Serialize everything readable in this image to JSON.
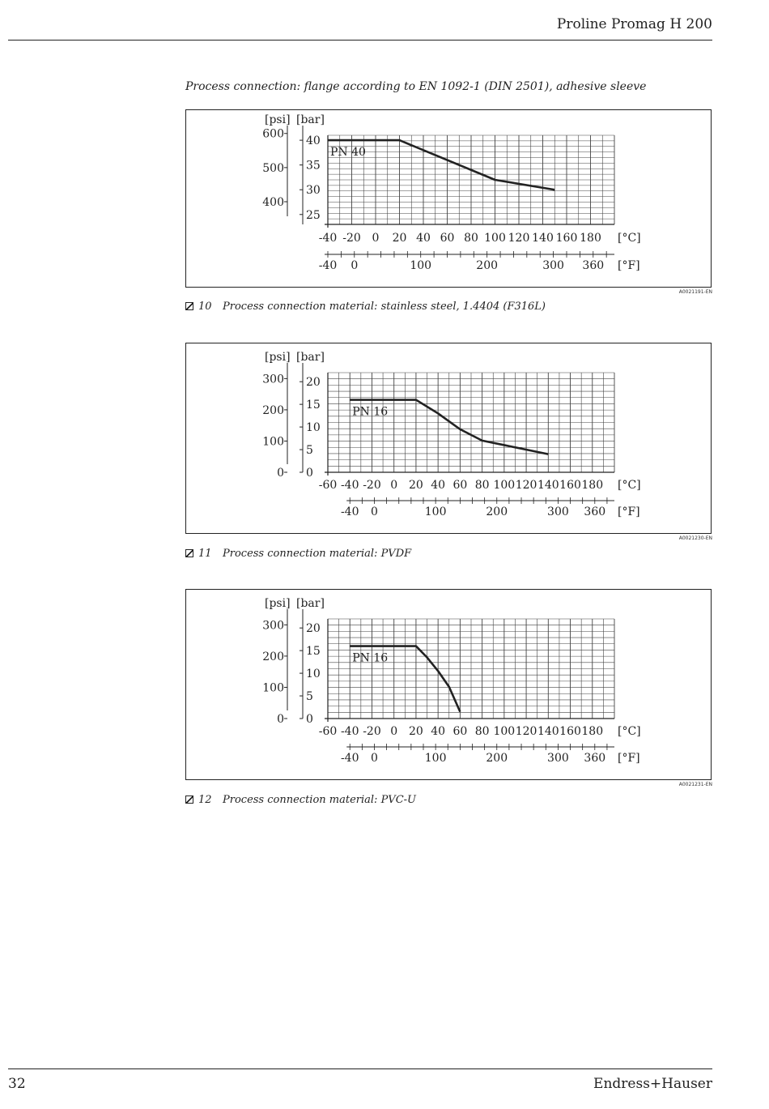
{
  "header": {
    "title": "Proline Promag H 200"
  },
  "section_title": "Process connection: flange according to EN 1092-1 (DIN 2501), adhesive sleeve",
  "figures": [
    {
      "number": "10",
      "caption": "Process connection material: stainless steel, 1.4404 (F316L)",
      "code": "A0021191-EN"
    },
    {
      "number": "11",
      "caption": "Process connection material: PVDF",
      "code": "A0021230-EN"
    },
    {
      "number": "12",
      "caption": "Process connection material: PVC-U",
      "code": "A0021231-EN"
    }
  ],
  "footer": {
    "page_number": "32",
    "brand": "Endress+Hauser"
  },
  "chart_data": [
    {
      "type": "line",
      "xlabel": "[°C]",
      "x2label": "[°F]",
      "ylabel": "[bar]",
      "y2label": "[psi]",
      "xlim": [
        -40,
        200
      ],
      "ylim": [
        23,
        41
      ],
      "grid": true,
      "x_ticks": [
        "-40",
        "-20",
        "0",
        "20",
        "40",
        "60",
        "80",
        "100",
        "120",
        "140",
        "160",
        "180"
      ],
      "x2_ticks": [
        "-40",
        "0",
        "100",
        "200",
        "300",
        "360"
      ],
      "y_ticks": [
        "40",
        "35",
        "30",
        "25"
      ],
      "y2_ticks": [
        "600",
        "500",
        "400"
      ],
      "annotation": "PN 40",
      "series": [
        {
          "x": [
            -40,
            20,
            100,
            150
          ],
          "y": [
            40,
            40,
            32,
            30
          ]
        }
      ]
    },
    {
      "type": "line",
      "xlabel": "[°C]",
      "x2label": "[°F]",
      "ylabel": "[bar]",
      "y2label": "[psi]",
      "xlim": [
        -60,
        200
      ],
      "ylim": [
        0,
        22
      ],
      "grid": true,
      "x_ticks": [
        "-60",
        "-40",
        "-20",
        "0",
        "20",
        "40",
        "60",
        "80",
        "100",
        "120",
        "140",
        "160",
        "180"
      ],
      "x2_ticks": [
        "-40",
        "0",
        "100",
        "200",
        "300",
        "360"
      ],
      "y_ticks": [
        "20",
        "15",
        "10",
        "5",
        "0"
      ],
      "y2_ticks": [
        "300",
        "200",
        "100",
        "0"
      ],
      "annotation": "PN 16",
      "series": [
        {
          "x": [
            -40,
            20,
            40,
            60,
            80,
            100,
            140
          ],
          "y": [
            16,
            16,
            13,
            9.5,
            7,
            6,
            4
          ]
        }
      ]
    },
    {
      "type": "line",
      "xlabel": "[°C]",
      "x2label": "[°F]",
      "ylabel": "[bar]",
      "y2label": "[psi]",
      "xlim": [
        -60,
        200
      ],
      "ylim": [
        0,
        22
      ],
      "grid": true,
      "x_ticks": [
        "-60",
        "-40",
        "-20",
        "0",
        "20",
        "40",
        "60",
        "80",
        "100",
        "120",
        "140",
        "160",
        "180"
      ],
      "x2_ticks": [
        "-40",
        "0",
        "100",
        "200",
        "300",
        "360"
      ],
      "y_ticks": [
        "20",
        "15",
        "10",
        "5",
        "0"
      ],
      "y2_ticks": [
        "300",
        "200",
        "100",
        "0"
      ],
      "annotation": "PN 16",
      "series": [
        {
          "x": [
            -40,
            20,
            30,
            40,
            50,
            60
          ],
          "y": [
            16,
            16,
            13.5,
            10.5,
            7,
            1.5
          ]
        }
      ]
    }
  ]
}
